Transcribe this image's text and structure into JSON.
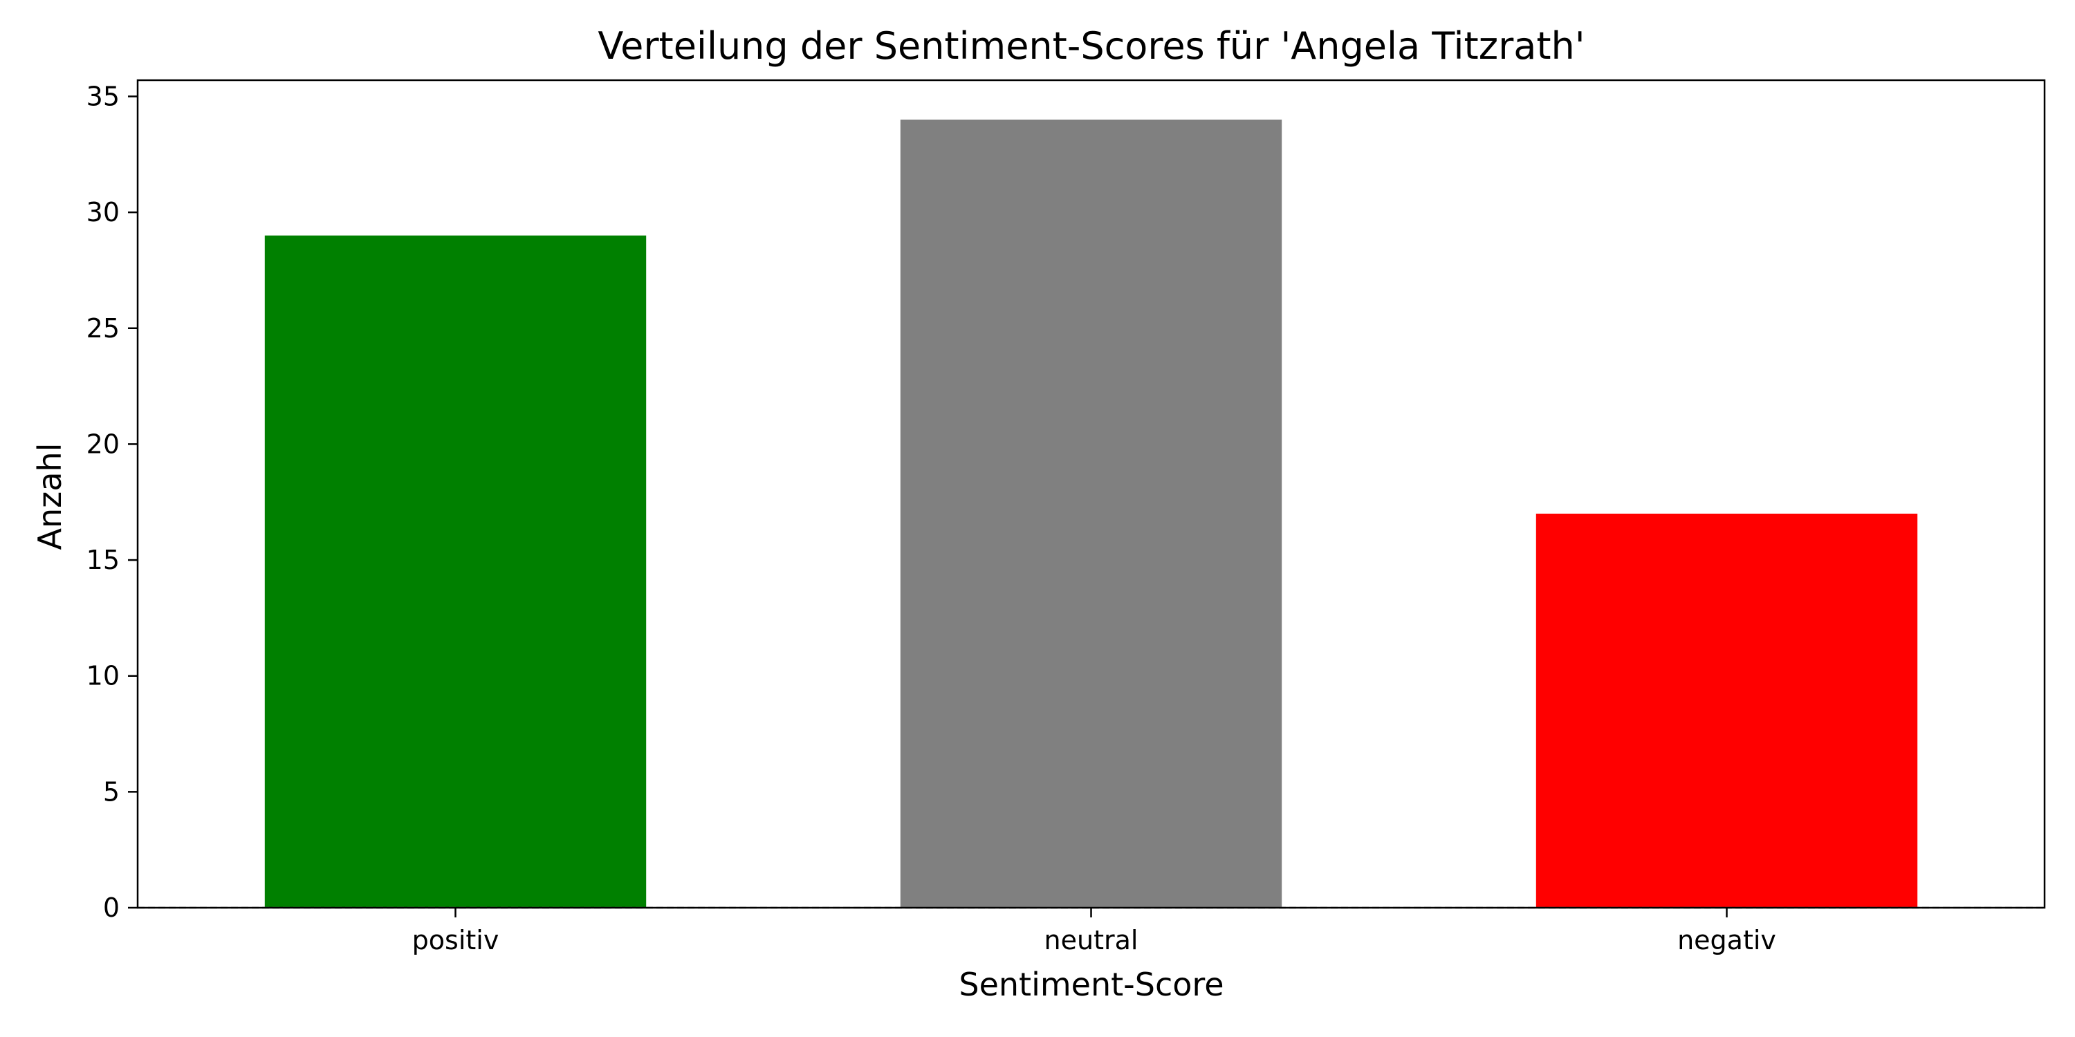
{
  "chart_data": {
    "type": "bar",
    "title": "Verteilung der Sentiment-Scores für 'Angela Titzrath'",
    "xlabel": "Sentiment-Score",
    "ylabel": "Anzahl",
    "categories": [
      "positiv",
      "neutral",
      "negativ"
    ],
    "values": [
      29,
      34,
      17
    ],
    "colors": [
      "#008000",
      "#808080",
      "#ff0000"
    ],
    "ylim": [
      0,
      35.7
    ],
    "yticks": [
      0,
      5,
      10,
      15,
      20,
      25,
      30,
      35
    ],
    "ytick_labels": [
      "0",
      "5",
      "10",
      "15",
      "20",
      "25",
      "30",
      "35"
    ],
    "grid": false,
    "legend": "none",
    "reference_line": {
      "y": 0,
      "style": "dashed",
      "color": "#808080"
    }
  }
}
